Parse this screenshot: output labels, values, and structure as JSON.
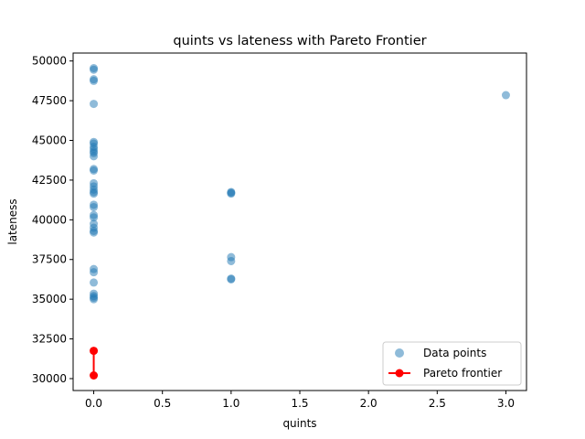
{
  "chart_data": {
    "type": "scatter",
    "title": "quints vs lateness with Pareto Frontier",
    "xlabel": "quints",
    "ylabel": "lateness",
    "xlim": [
      -0.15,
      3.15
    ],
    "ylim": [
      29250,
      50500
    ],
    "xticks": [
      0.0,
      0.5,
      1.0,
      1.5,
      2.0,
      2.5,
      3.0
    ],
    "xtick_labels": [
      "0.0",
      "0.5",
      "1.0",
      "1.5",
      "2.0",
      "2.5",
      "3.0"
    ],
    "yticks": [
      30000,
      32500,
      35000,
      37500,
      40000,
      42500,
      45000,
      47500,
      50000
    ],
    "ytick_labels": [
      "30000",
      "32500",
      "35000",
      "37500",
      "40000",
      "42500",
      "45000",
      "47500",
      "50000"
    ],
    "grid": false,
    "legend_position": "lower right",
    "series": [
      {
        "name": "Data points",
        "kind": "scatter",
        "color": "#1f77b4",
        "alpha": 0.5,
        "points": [
          [
            0,
            49550
          ],
          [
            0,
            49450
          ],
          [
            0,
            48850
          ],
          [
            0,
            48750
          ],
          [
            0,
            47300
          ],
          [
            0,
            44900
          ],
          [
            0,
            44800
          ],
          [
            0,
            44600
          ],
          [
            0,
            44450
          ],
          [
            0,
            44300
          ],
          [
            0,
            44200
          ],
          [
            0,
            44000
          ],
          [
            0,
            43200
          ],
          [
            0,
            43100
          ],
          [
            0,
            42300
          ],
          [
            0,
            42100
          ],
          [
            0,
            41900
          ],
          [
            0,
            41750
          ],
          [
            0,
            41650
          ],
          [
            0,
            40950
          ],
          [
            0,
            40800
          ],
          [
            0,
            40300
          ],
          [
            0,
            40150
          ],
          [
            0,
            39750
          ],
          [
            0,
            39500
          ],
          [
            0,
            39300
          ],
          [
            0,
            39200
          ],
          [
            0,
            36900
          ],
          [
            0,
            36700
          ],
          [
            0,
            36050
          ],
          [
            0,
            35350
          ],
          [
            0,
            35200
          ],
          [
            0,
            35100
          ],
          [
            0,
            35000
          ],
          [
            1,
            41750
          ],
          [
            1,
            41700
          ],
          [
            1,
            41650
          ],
          [
            1,
            37650
          ],
          [
            1,
            37400
          ],
          [
            1,
            36300
          ],
          [
            1,
            36250
          ],
          [
            3,
            47850
          ]
        ]
      },
      {
        "name": "Pareto frontier",
        "kind": "line",
        "color": "#ff0000",
        "points": [
          [
            0,
            30200
          ],
          [
            0,
            31750
          ]
        ]
      }
    ]
  }
}
